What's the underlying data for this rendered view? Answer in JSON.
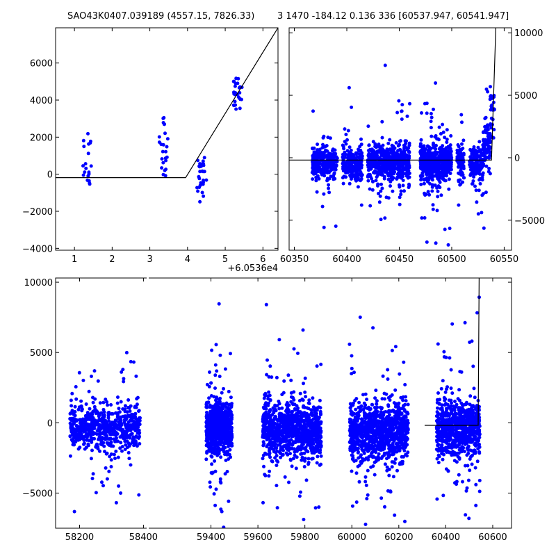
{
  "titles": {
    "left": "SAO43K0407.039189 (4557.15, 7826.33)",
    "right": "3 1470 -184.12 0.136 336 [60537.947, 60541.947]"
  },
  "chart_data": [
    {
      "id": "zoom",
      "type": "scatter",
      "offset_label": "+6.0536e4",
      "xlim": [
        0.5,
        6.4
      ],
      "ylim": [
        -4100,
        7900
      ],
      "xticks": [
        1,
        2,
        3,
        4,
        5,
        6
      ],
      "xtick_labels": [
        "1",
        "2",
        "3",
        "4",
        "5",
        "6"
      ],
      "yticks": [
        -4000,
        -2000,
        0,
        2000,
        4000,
        6000
      ],
      "ytick_labels": [
        "−4000",
        "−2000",
        "0",
        "2000",
        "4000",
        "6000"
      ],
      "marker_color": "#0000ff",
      "line_color": "#000000",
      "model_line": [
        [
          0.5,
          -184
        ],
        [
          3.95,
          -184
        ],
        [
          6.4,
          7900
        ]
      ],
      "point_groups": [
        {
          "x": [
            1.2,
            1.45
          ],
          "y": [
            -1100,
            2200
          ],
          "n": 20
        },
        {
          "x": [
            3.25,
            3.5
          ],
          "y": [
            -100,
            3200
          ],
          "n": 24
        },
        {
          "x": [
            4.25,
            4.5
          ],
          "y": [
            -1500,
            900
          ],
          "n": 28
        },
        {
          "x": [
            5.2,
            5.45
          ],
          "y": [
            3500,
            5200
          ],
          "n": 26
        }
      ]
    },
    {
      "id": "recent",
      "type": "scatter",
      "xlim": [
        60345,
        60557
      ],
      "ylim": [
        -7400,
        10400
      ],
      "xticks": [
        60350,
        60400,
        60450,
        60500,
        60550
      ],
      "xtick_labels": [
        "60350",
        "60400",
        "60450",
        "60500",
        "60550"
      ],
      "yticks": [
        -5000,
        0,
        5000,
        10000
      ],
      "ytick_labels": [
        "−5000",
        "0",
        "5000",
        "10000"
      ],
      "y_axis_side": "right",
      "marker_color": "#0000ff",
      "line_color": "#000000",
      "model_line": [
        [
          60345,
          -184
        ],
        [
          60537.9,
          -184
        ],
        [
          60542,
          10400
        ]
      ],
      "segments": [
        {
          "x": [
            60367,
            60391
          ],
          "mean": -450,
          "sd": 600,
          "n": 240,
          "outliers": 20
        },
        {
          "x": [
            60396,
            60415
          ],
          "mean": -500,
          "sd": 600,
          "n": 200,
          "outliers": 18
        },
        {
          "x": [
            60420,
            60446
          ],
          "mean": -350,
          "sd": 700,
          "n": 320,
          "outliers": 30
        },
        {
          "x": [
            60447,
            60460
          ],
          "mean": -300,
          "sd": 700,
          "n": 180,
          "outliers": 24
        },
        {
          "x": [
            60470,
            60487
          ],
          "mean": -400,
          "sd": 800,
          "n": 300,
          "outliers": 36
        },
        {
          "x": [
            60487,
            60500
          ],
          "mean": -300,
          "sd": 700,
          "n": 200,
          "outliers": 22
        },
        {
          "x": [
            60505,
            60512
          ],
          "mean": -350,
          "sd": 600,
          "n": 90,
          "outliers": 10
        },
        {
          "x": [
            60517,
            60530
          ],
          "mean": -500,
          "sd": 600,
          "n": 170,
          "outliers": 16
        },
        {
          "x": [
            60530,
            60537
          ],
          "mean": 700,
          "sd": 900,
          "n": 90,
          "outliers": 8
        }
      ],
      "rise": {
        "x": [
          60536,
          60541
        ],
        "y": [
          1500,
          5000
        ],
        "n": 24
      }
    },
    {
      "id": "full",
      "type": "scatter",
      "xlim": [
        58125,
        60680
      ],
      "ylim": [
        -7500,
        10300
      ],
      "broken_axis_gap_x": [
        58410,
        59135
      ],
      "xticks": [
        58200,
        58400,
        59400,
        59600,
        59800,
        60000,
        60200,
        60400,
        60600
      ],
      "xtick_labels": [
        "58200",
        "58400",
        "59400",
        "59600",
        "59800",
        "60000",
        "60200",
        "60400",
        "60600"
      ],
      "yticks": [
        -5000,
        0,
        5000,
        10000
      ],
      "ytick_labels": [
        "−5000",
        "0",
        "5000",
        "10000"
      ],
      "marker_color": "#0000ff",
      "line_color": "#000000",
      "model_line": [
        [
          60310,
          -184
        ],
        [
          60538,
          -184
        ],
        [
          60542,
          10300
        ]
      ],
      "segments": [
        {
          "x": [
            58170,
            58390
          ],
          "mean": -300,
          "sd": 800,
          "n": 600,
          "outliers": 60
        },
        {
          "x": [
            59380,
            59490
          ],
          "mean": -400,
          "sd": 900,
          "n": 700,
          "outliers": 70
        },
        {
          "x": [
            59620,
            59870
          ],
          "mean": -500,
          "sd": 900,
          "n": 900,
          "outliers": 90
        },
        {
          "x": [
            59990,
            60240
          ],
          "mean": -600,
          "sd": 1000,
          "n": 900,
          "outliers": 90
        },
        {
          "x": [
            60360,
            60545
          ],
          "mean": -400,
          "sd": 1000,
          "n": 700,
          "outliers": 80
        }
      ]
    }
  ]
}
